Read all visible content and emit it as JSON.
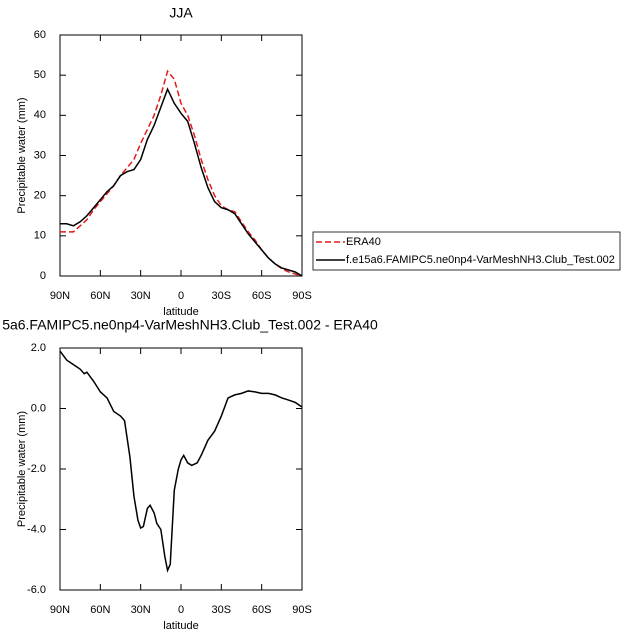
{
  "chart_data": [
    {
      "type": "line",
      "title": "JJA",
      "xlabel": "latitude",
      "ylabel": "Precipitable water (mm)",
      "x": [
        90,
        85,
        80,
        75,
        70,
        65,
        60,
        55,
        50,
        45,
        40,
        35,
        30,
        25,
        20,
        15,
        10,
        5,
        0,
        -5,
        -10,
        -15,
        -20,
        -25,
        -30,
        -35,
        -40,
        -45,
        -50,
        -55,
        -60,
        -65,
        -70,
        -75,
        -80,
        -85,
        -90
      ],
      "series": [
        {
          "name": "ERA40",
          "color": "#e31a1c",
          "dashed": true,
          "values": [
            11,
            11,
            11,
            12.5,
            14,
            16.5,
            18.5,
            20.5,
            22.5,
            25,
            27,
            29,
            33,
            36.5,
            40,
            45,
            51,
            49,
            43,
            40,
            35,
            29,
            24,
            20,
            17.5,
            16.5,
            16,
            13.5,
            11,
            9,
            6.5,
            4.5,
            3,
            1.8,
            1,
            0.5,
            0
          ]
        },
        {
          "name": "f.e15a6.FAMIPC5.ne0np4-VarMeshNH3.Club_Test.002",
          "color": "#000000",
          "dashed": false,
          "values": [
            13,
            13,
            12.5,
            13.5,
            15,
            17,
            19,
            21,
            22.5,
            25,
            26,
            26.5,
            29,
            34,
            37.5,
            42,
            46.5,
            43,
            40.5,
            38.5,
            33,
            27,
            22,
            18.5,
            17,
            16.5,
            15.5,
            13,
            10.5,
            8.5,
            6.5,
            4.5,
            3,
            2,
            1.5,
            1,
            0
          ]
        }
      ],
      "xlim": [
        90,
        -90
      ],
      "ylim": [
        0,
        60
      ],
      "xticks": [
        {
          "value": 90,
          "label": "90N"
        },
        {
          "value": 60,
          "label": "60N"
        },
        {
          "value": 30,
          "label": "30N"
        },
        0,
        {
          "value": -30,
          "label": "30S"
        },
        {
          "value": -60,
          "label": "60S"
        },
        {
          "value": -90,
          "label": "90S"
        }
      ],
      "yticks": [
        0,
        10,
        20,
        30,
        40,
        50,
        60
      ],
      "legend": "outside-right"
    },
    {
      "type": "line",
      "title": "5a6.FAMIPC5.ne0np4-VarMeshNH3.Club_Test.002 - ERA40",
      "xlabel": "latitude",
      "ylabel": "Precipitable water (mm)",
      "x": [
        90,
        85,
        80,
        75,
        72,
        70,
        65,
        60,
        55,
        50,
        45,
        42,
        38,
        35,
        32,
        30,
        28,
        25,
        23,
        20,
        18,
        15,
        12,
        10,
        8,
        5,
        2,
        0,
        -2,
        -5,
        -8,
        -12,
        -15,
        -20,
        -25,
        -30,
        -35,
        -40,
        -45,
        -50,
        -55,
        -60,
        -65,
        -70,
        -75,
        -80,
        -85,
        -90
      ],
      "series": [
        {
          "color": "#000000",
          "dashed": false,
          "values": [
            1.9,
            1.6,
            1.45,
            1.3,
            1.15,
            1.2,
            0.9,
            0.55,
            0.35,
            -0.1,
            -0.25,
            -0.4,
            -1.6,
            -2.9,
            -3.7,
            -3.95,
            -3.9,
            -3.3,
            -3.2,
            -3.45,
            -3.8,
            -4.0,
            -4.9,
            -5.35,
            -5.15,
            -2.7,
            -2.0,
            -1.7,
            -1.55,
            -1.8,
            -1.88,
            -1.8,
            -1.55,
            -1.05,
            -0.75,
            -0.25,
            0.35,
            0.45,
            0.5,
            0.58,
            0.55,
            0.5,
            0.5,
            0.45,
            0.35,
            0.28,
            0.2,
            0.05
          ]
        }
      ],
      "xlim": [
        90,
        -90
      ],
      "ylim": [
        -6,
        2
      ],
      "xticks": [
        {
          "value": 90,
          "label": "90N"
        },
        {
          "value": 60,
          "label": "60N"
        },
        {
          "value": 30,
          "label": "30N"
        },
        0,
        {
          "value": -30,
          "label": "30S"
        },
        {
          "value": -60,
          "label": "60S"
        },
        {
          "value": -90,
          "label": "90S"
        }
      ],
      "yticks": [
        {
          "value": -6,
          "label": "-6.0"
        },
        {
          "value": -4,
          "label": "-4.0"
        },
        {
          "value": -2,
          "label": "-2.0"
        },
        {
          "value": 0,
          "label": "0.0"
        },
        {
          "value": 2,
          "label": "2.0"
        }
      ]
    }
  ]
}
